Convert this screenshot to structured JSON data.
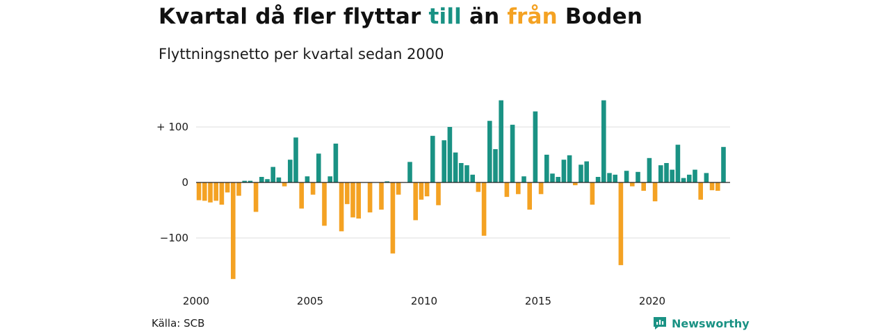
{
  "title": {
    "part1": "Kvartal då fler flyttar ",
    "till": "till",
    "part2": " än ",
    "fran": "från",
    "part3": " Boden"
  },
  "subtitle": "Flyttningsnetto per kvartal sedan 2000",
  "source": "Källa: SCB",
  "brand": {
    "name": "Newsworthy",
    "icon": "newsworthy-logo-icon"
  },
  "colors": {
    "positive": "#1a9284",
    "negative": "#f4a223",
    "grid": "#dcdcdc",
    "baseline": "#222222"
  },
  "chart_data": {
    "type": "bar",
    "title": "Kvartal då fler flyttar till än från Boden",
    "subtitle": "Flyttningsnetto per kvartal sedan 2000",
    "xlabel": "",
    "ylabel": "",
    "x_start": "2000 Q1",
    "x_ticks": [
      "2000",
      "2005",
      "2010",
      "2015",
      "2020"
    ],
    "y_ticks": [
      100,
      0,
      -100
    ],
    "y_tick_labels": [
      "+ 100",
      "0",
      "−100"
    ],
    "ylim": [
      -180,
      150
    ],
    "grid": true,
    "series": [
      {
        "values": [
          -32,
          -33,
          -36,
          -33,
          -40,
          -18,
          -174,
          -24,
          3,
          3,
          -53,
          10,
          6,
          28,
          9,
          -7,
          41,
          81,
          -47,
          11,
          -22,
          52,
          -78,
          11,
          70,
          -88,
          -39,
          -63,
          -65,
          0,
          -54,
          0,
          -49,
          2,
          -128,
          -22,
          0,
          37,
          -68,
          -31,
          -25,
          84,
          -41,
          76,
          100,
          54,
          35,
          31,
          14,
          -17,
          -96,
          111,
          60,
          148,
          -26,
          104,
          -21,
          11,
          -49,
          128,
          -21,
          50,
          16,
          10,
          41,
          49,
          -5,
          32,
          38,
          -40,
          10,
          148,
          17,
          14,
          -149,
          21,
          -7,
          19,
          -15,
          44,
          -34,
          31,
          35,
          23,
          68,
          8,
          14,
          23,
          -31,
          17,
          -14,
          -15,
          64
        ]
      }
    ]
  }
}
